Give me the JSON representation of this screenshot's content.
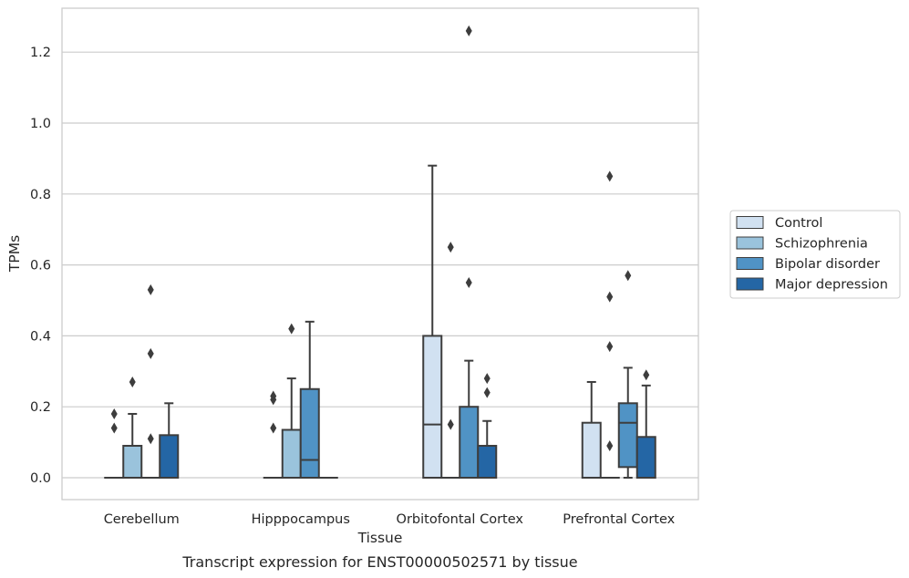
{
  "chart_data": {
    "type": "box",
    "xlabel": "Tissue",
    "ylabel": "TPMs",
    "caption": "Transcript expression for ENST00000502571 by tissue",
    "ylim": [
      -0.06,
      1.32
    ],
    "yticks": [
      0.0,
      0.2,
      0.4,
      0.6,
      0.8,
      1.0,
      1.2
    ],
    "ytick_labels": [
      "0.0",
      "0.2",
      "0.4",
      "0.6",
      "0.8",
      "1.0",
      "1.2"
    ],
    "grid": "horizontal",
    "legend_position": "right",
    "categories": [
      "Cerebellum",
      "Hipppocampus",
      "Orbitofontal Cortex",
      "Prefrontal Cortex"
    ],
    "series": [
      {
        "name": "Control",
        "color": "#d1e1f1",
        "boxes": [
          {
            "q1": 0,
            "median": 0,
            "q3": 0,
            "whislo": 0,
            "whishi": 0,
            "fliers": [
              0.14,
              0.18
            ]
          },
          {
            "q1": 0,
            "median": 0,
            "q3": 0,
            "whislo": 0,
            "whishi": 0,
            "fliers": [
              0.14,
              0.22,
              0.23
            ]
          },
          {
            "q1": 0,
            "median": 0.15,
            "q3": 0.4,
            "whislo": 0,
            "whishi": 0.88,
            "fliers": []
          },
          {
            "q1": 0,
            "median": 0,
            "q3": 0.155,
            "whislo": 0,
            "whishi": 0.27,
            "fliers": []
          }
        ]
      },
      {
        "name": "Schizophrenia",
        "color": "#9ac3dc",
        "boxes": [
          {
            "q1": 0,
            "median": 0,
            "q3": 0.09,
            "whislo": 0,
            "whishi": 0.18,
            "fliers": [
              0.27
            ]
          },
          {
            "q1": 0,
            "median": 0,
            "q3": 0.135,
            "whislo": 0,
            "whishi": 0.28,
            "fliers": [
              0.42
            ]
          },
          {
            "q1": 0,
            "median": 0,
            "q3": 0,
            "whislo": 0,
            "whishi": 0,
            "fliers": [
              0.15,
              0.65
            ]
          },
          {
            "q1": 0,
            "median": 0,
            "q3": 0,
            "whislo": 0,
            "whishi": 0,
            "fliers": [
              0.09,
              0.37,
              0.51,
              0.85
            ]
          }
        ]
      },
      {
        "name": "Bipolar disorder",
        "color": "#5093c5",
        "boxes": [
          {
            "q1": 0,
            "median": 0,
            "q3": 0,
            "whislo": 0,
            "whishi": 0,
            "fliers": [
              0.11,
              0.35,
              0.53
            ]
          },
          {
            "q1": 0,
            "median": 0.05,
            "q3": 0.25,
            "whislo": 0,
            "whishi": 0.44,
            "fliers": []
          },
          {
            "q1": 0,
            "median": 0,
            "q3": 0.2,
            "whislo": 0,
            "whishi": 0.33,
            "fliers": [
              0.55,
              1.26
            ]
          },
          {
            "q1": 0.03,
            "median": 0.155,
            "q3": 0.21,
            "whislo": 0,
            "whishi": 0.31,
            "fliers": [
              0.57
            ]
          }
        ]
      },
      {
        "name": "Major depression",
        "color": "#2466a5",
        "boxes": [
          {
            "q1": 0,
            "median": 0,
            "q3": 0.12,
            "whislo": 0,
            "whishi": 0.21,
            "fliers": []
          },
          {
            "q1": 0,
            "median": 0,
            "q3": 0,
            "whislo": 0,
            "whishi": 0,
            "fliers": []
          },
          {
            "q1": 0,
            "median": 0,
            "q3": 0.09,
            "whislo": 0,
            "whishi": 0.16,
            "fliers": [
              0.24,
              0.28
            ]
          },
          {
            "q1": 0,
            "median": 0,
            "q3": 0.115,
            "whislo": 0,
            "whishi": 0.26,
            "fliers": [
              0.29
            ]
          }
        ]
      }
    ]
  }
}
